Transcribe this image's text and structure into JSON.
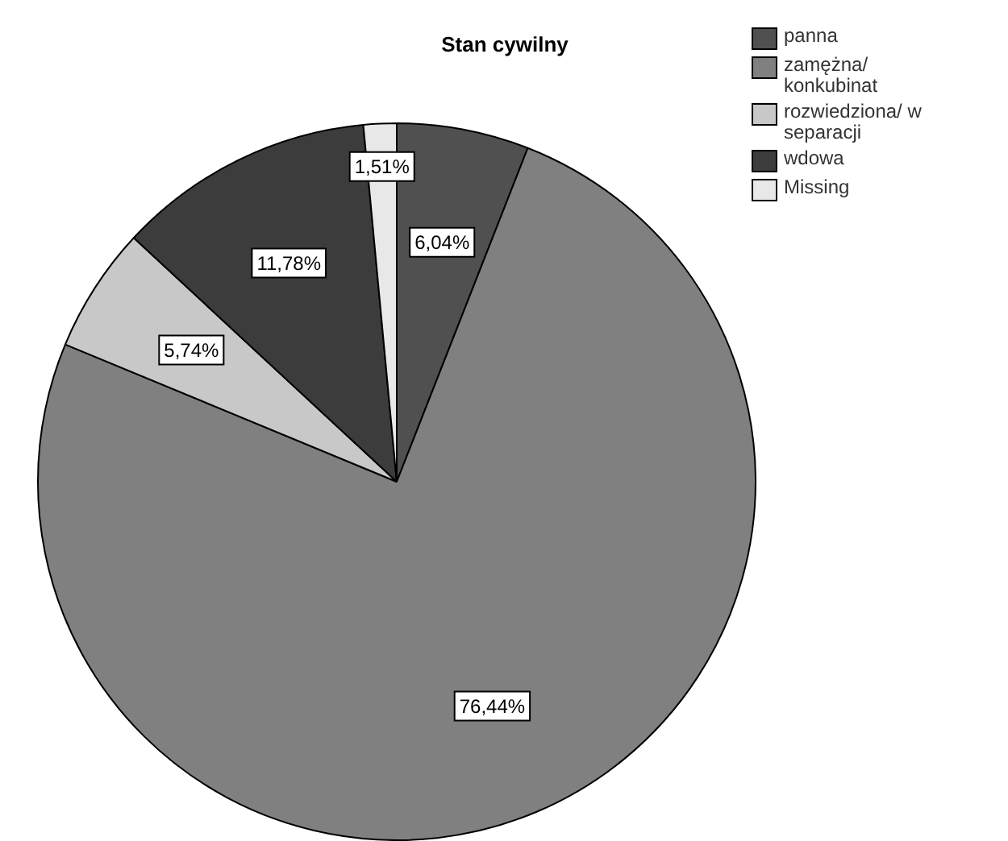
{
  "chart_data": {
    "type": "pie",
    "title": "Stan cywilny",
    "categories": [
      "panna",
      "zamężna/ konkubinat",
      "rozwiedziona/ w separacji",
      "wdowa",
      "Missing"
    ],
    "values": [
      6.04,
      76.44,
      5.74,
      11.78,
      1.51
    ],
    "colors": [
      "#505050",
      "#808080",
      "#c8c8c8",
      "#3c3c3c",
      "#e8e8e8"
    ],
    "value_labels": [
      "6,04%",
      "76,44%",
      "5,74%",
      "11,78%",
      "1,51%"
    ],
    "legend": "top right"
  }
}
